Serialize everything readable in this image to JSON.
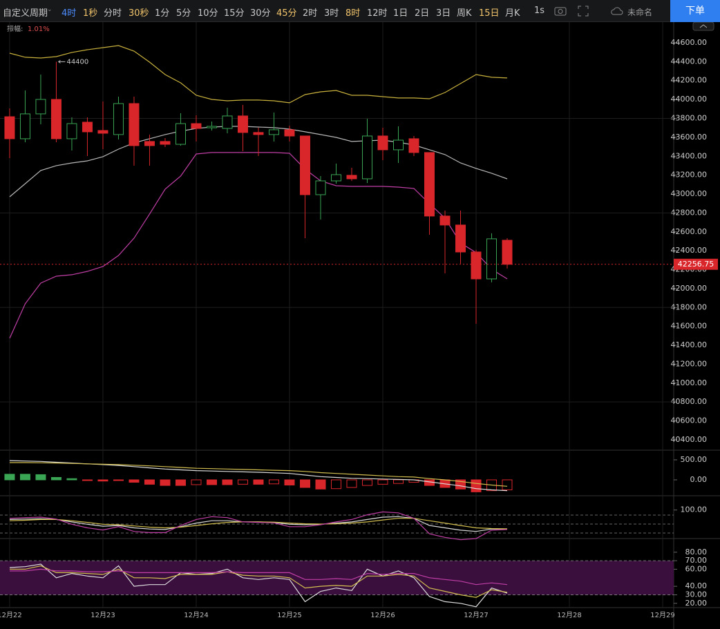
{
  "toolbar": {
    "custom_period": "自定义周期",
    "intervals": [
      "4时",
      "1秒",
      "分时",
      "30秒",
      "1分",
      "5分",
      "10分",
      "15分",
      "30分",
      "45分",
      "2时",
      "3时",
      "8时",
      "12时",
      "1日",
      "2日",
      "3日",
      "周K",
      "15日",
      "月K"
    ],
    "timer": "1s",
    "layout_name": "未命名",
    "order_button": "下单"
  },
  "indicator": {
    "label": "振幅:",
    "value": "1.01%"
  },
  "chart_data": [
    {
      "type": "candlestick",
      "up_color": "#3aa655",
      "down_color": "#d9262b",
      "open": [
        43818,
        43585,
        43848,
        44001,
        43585,
        43760,
        43672,
        43629,
        43957,
        43556,
        43556,
        43526,
        43745,
        43701,
        43694,
        43826,
        43651,
        43629,
        43680,
        43614,
        42993,
        43139,
        43198,
        43161,
        43614,
        43468,
        43585,
        43439,
        42767,
        42672,
        42387,
        42102,
        42511
      ],
      "high": [
        43906,
        44096,
        44264,
        44400,
        43811,
        43811,
        43979,
        44030,
        44030,
        43629,
        43592,
        43855,
        43833,
        43767,
        43913,
        43943,
        43702,
        43862,
        43723,
        43614,
        43190,
        43322,
        43278,
        43797,
        43702,
        43716,
        43614,
        43439,
        42825,
        42825,
        42409,
        42584,
        42533
      ],
      "low": [
        43380,
        43548,
        43738,
        43548,
        43461,
        43402,
        43475,
        43578,
        43300,
        43300,
        43497,
        43512,
        43556,
        43672,
        43643,
        43453,
        43402,
        43556,
        43556,
        42533,
        42730,
        43110,
        43139,
        43117,
        43358,
        43329,
        43402,
        42570,
        42161,
        42263,
        41627,
        42066,
        42212
      ],
      "close": [
        43585,
        43848,
        44001,
        43585,
        43745,
        43658,
        43643,
        43957,
        43512,
        43512,
        43526,
        43745,
        43694,
        43716,
        43826,
        43651,
        43629,
        43680,
        43614,
        42993,
        43139,
        43205,
        43161,
        43614,
        43468,
        43570,
        43439,
        42767,
        42672,
        42387,
        42102,
        42526,
        42256.75
      ],
      "series": [
        {
          "color": "#c9b23c",
          "values": [
            44490,
            44447,
            44439,
            44454,
            44498,
            44527,
            44549,
            44571,
            44512,
            44395,
            44264,
            44176,
            44045,
            44001,
            43986,
            43994,
            43994,
            43986,
            43965,
            44052,
            44081,
            44096,
            44045,
            44045,
            44030,
            44016,
            44016,
            44008,
            44074,
            44169,
            44264,
            44235,
            44228
          ]
        },
        {
          "color": "#b8b8b8",
          "values": [
            42971,
            43110,
            43249,
            43300,
            43329,
            43351,
            43395,
            43475,
            43541,
            43585,
            43629,
            43665,
            43694,
            43709,
            43716,
            43716,
            43709,
            43702,
            43687,
            43658,
            43629,
            43599,
            43556,
            43563,
            43570,
            43548,
            43519,
            43468,
            43417,
            43329,
            43271,
            43220,
            43161
          ]
        },
        {
          "color": "#c13fa6",
          "values": [
            41474,
            41839,
            42058,
            42131,
            42146,
            42182,
            42233,
            42350,
            42533,
            42789,
            43052,
            43190,
            43424,
            43439,
            43439,
            43439,
            43439,
            43439,
            43431,
            43263,
            43139,
            43088,
            43081,
            43081,
            43081,
            43073,
            43059,
            42898,
            42745,
            42482,
            42380,
            42204,
            42102
          ]
        }
      ],
      "xlim": [
        -0.62,
        42.71
      ],
      "xticks": [
        {
          "value": 0,
          "label": "12月22"
        },
        {
          "value": 6,
          "label": "12月23"
        },
        {
          "value": 12,
          "label": "12月24"
        },
        {
          "value": 18,
          "label": "12月25"
        },
        {
          "value": 24,
          "label": "12月26"
        },
        {
          "value": 30,
          "label": "12月27"
        },
        {
          "value": 36,
          "label": "12月28"
        },
        {
          "value": 42,
          "label": "12月29"
        }
      ],
      "ylim": [
        40290,
        44819
      ],
      "yticks": [
        {
          "value": 40400,
          "label": "40400.00"
        },
        {
          "value": 40600,
          "label": "40600.00"
        },
        {
          "value": 40800,
          "label": "40800.00"
        },
        {
          "value": 41000,
          "label": "41000.00"
        },
        {
          "value": 41200,
          "label": "41200.00"
        },
        {
          "value": 41400,
          "label": "41400.00"
        },
        {
          "value": 41600,
          "label": "41600.00"
        },
        {
          "value": 41800,
          "label": "41800.00"
        },
        {
          "value": 42000,
          "label": "42000.00"
        },
        {
          "value": 42200,
          "label": "42200.00"
        },
        {
          "value": 42400,
          "label": "42400.00"
        },
        {
          "value": 42600,
          "label": "42600.00"
        },
        {
          "value": 42800,
          "label": "42800.00"
        },
        {
          "value": 43000,
          "label": "43000.00"
        },
        {
          "value": 43200,
          "label": "43200.00"
        },
        {
          "value": 43400,
          "label": "43400.00"
        },
        {
          "value": 43600,
          "label": "43600.00"
        },
        {
          "value": 43800,
          "label": "43800.00"
        },
        {
          "value": 44000,
          "label": "44000.00"
        },
        {
          "value": 44200,
          "label": "44200.00"
        },
        {
          "value": 44400,
          "label": "44400.00"
        },
        {
          "value": 44600,
          "label": "44600.00"
        }
      ]
    },
    {
      "type": "macd",
      "histogram": [
        140,
        140,
        130,
        60,
        30,
        -15,
        -30,
        -15,
        -60,
        -110,
        -140,
        -140,
        -120,
        -120,
        -120,
        -110,
        -110,
        -100,
        -130,
        -190,
        -230,
        -220,
        -190,
        -140,
        -110,
        -90,
        -60,
        -140,
        -190,
        -230,
        -300,
        -270,
        -250
      ],
      "series": [
        {
          "color": "#dddddd",
          "values": [
            480,
            470,
            460,
            440,
            420,
            400,
            380,
            360,
            330,
            300,
            270,
            250,
            230,
            220,
            210,
            200,
            190,
            175,
            160,
            120,
            80,
            60,
            40,
            30,
            20,
            10,
            0,
            -50,
            -100,
            -150,
            -220,
            -250,
            -270
          ]
        },
        {
          "color": "#d4c050",
          "values": [
            430,
            430,
            425,
            420,
            410,
            400,
            390,
            380,
            365,
            350,
            330,
            310,
            290,
            280,
            270,
            260,
            250,
            240,
            230,
            210,
            180,
            160,
            140,
            120,
            100,
            80,
            70,
            30,
            0,
            -40,
            -90,
            -130,
            -160
          ]
        }
      ],
      "ylim": [
        -397,
        741
      ],
      "yticks": [
        {
          "value": 500,
          "label": "500.00"
        },
        {
          "value": 0,
          "label": "0.00"
        }
      ]
    },
    {
      "type": "line",
      "series": [
        {
          "color": "#dddddd",
          "values": [
            60,
            62,
            63,
            60,
            50,
            40,
            32,
            35,
            25,
            20,
            18,
            30,
            45,
            55,
            55,
            50,
            50,
            48,
            40,
            38,
            40,
            45,
            50,
            60,
            70,
            72,
            65,
            35,
            25,
            15,
            10,
            20,
            20
          ]
        },
        {
          "color": "#d4c050",
          "values": [
            55,
            57,
            60,
            60,
            55,
            48,
            40,
            38,
            33,
            28,
            25,
            28,
            35,
            42,
            48,
            50,
            50,
            49,
            45,
            42,
            41,
            42,
            45,
            50,
            58,
            65,
            65,
            55,
            45,
            35,
            25,
            22,
            21
          ]
        },
        {
          "color": "#c13fa6",
          "values": [
            65,
            68,
            70,
            62,
            40,
            25,
            16,
            30,
            10,
            5,
            5,
            35,
            60,
            72,
            68,
            50,
            48,
            46,
            30,
            30,
            38,
            50,
            60,
            80,
            92,
            88,
            65,
            0,
            -15,
            -25,
            -20,
            15,
            18
          ]
        }
      ],
      "ylim": [
        -20,
        160
      ],
      "yticks": [
        {
          "value": 100,
          "label": "100.00"
        }
      ]
    },
    {
      "type": "line",
      "band_color": "#3a0f3e",
      "series": [
        {
          "color": "#dddddd",
          "values": [
            62,
            63,
            66,
            50,
            55,
            52,
            50,
            64,
            40,
            42,
            42,
            56,
            54,
            55,
            60,
            50,
            48,
            50,
            48,
            22,
            34,
            38,
            35,
            60,
            52,
            58,
            50,
            28,
            22,
            20,
            16,
            38,
            32
          ]
        },
        {
          "color": "#d4c050",
          "values": [
            60,
            60,
            64,
            56,
            56,
            55,
            54,
            60,
            50,
            50,
            49,
            54,
            54,
            54,
            57,
            53,
            52,
            52,
            50,
            38,
            40,
            41,
            40,
            52,
            52,
            54,
            52,
            38,
            34,
            30,
            27,
            36,
            33
          ]
        },
        {
          "color": "#c13fa6",
          "values": [
            58,
            58,
            60,
            58,
            58,
            57,
            57,
            58,
            56,
            56,
            56,
            56,
            56,
            56,
            57,
            56,
            56,
            56,
            56,
            48,
            48,
            49,
            48,
            55,
            54,
            55,
            55,
            50,
            48,
            46,
            42,
            44,
            42
          ]
        }
      ],
      "ylim": [
        15,
        96
      ],
      "yticks": [
        {
          "value": 80,
          "label": "80.00"
        },
        {
          "value": 70,
          "label": "70.00"
        },
        {
          "value": 60,
          "label": "60.00"
        },
        {
          "value": 40,
          "label": "40.00"
        },
        {
          "value": 30,
          "label": "30.00"
        },
        {
          "value": 20,
          "label": "20.00"
        }
      ]
    }
  ]
}
